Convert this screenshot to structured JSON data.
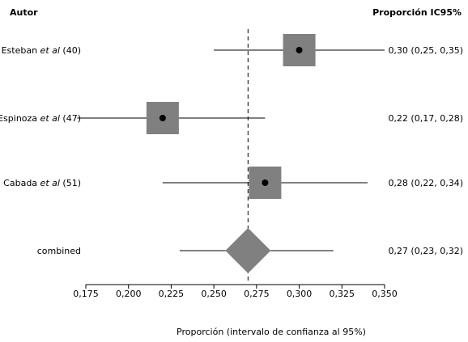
{
  "chart_data": {
    "type": "forest",
    "header_left": "Autor",
    "header_right": "Proporción IC95%",
    "xlabel": "Proporción (intervalo de confianza al 95%)",
    "xlim": [
      0.175,
      0.35
    ],
    "xticks": [
      "0,175",
      "0,200",
      "0,225",
      "0,250",
      "0,275",
      "0,300",
      "0,325",
      "0,350"
    ],
    "xtick_values": [
      0.175,
      0.2,
      0.225,
      0.25,
      0.275,
      0.3,
      0.325,
      0.35
    ],
    "reference_line": 0.27,
    "studies": [
      {
        "name": "Esteban",
        "suffix": "et al",
        "ref": "(40)",
        "estimate": 0.3,
        "lower": 0.25,
        "upper": 0.35,
        "ci_text": "0,30 (0,25, 0,35)",
        "weight": 0.33
      },
      {
        "name": "Espinoza",
        "suffix": "et al",
        "ref": "(47)",
        "estimate": 0.22,
        "lower": 0.17,
        "upper": 0.28,
        "ci_text": "0,22 (0,17, 0,28)",
        "weight": 0.33
      },
      {
        "name": "Cabada",
        "suffix": "et al",
        "ref": "(51)",
        "estimate": 0.28,
        "lower": 0.22,
        "upper": 0.34,
        "ci_text": "0,28 (0,22, 0,34)",
        "weight": 0.34
      }
    ],
    "combined": {
      "label": "combined",
      "estimate": 0.27,
      "lower": 0.23,
      "upper": 0.32,
      "ci_text": "0,27 (0,23, 0,32)"
    },
    "colors": {
      "box": "#808080",
      "diamond": "#808080",
      "line": "#000000"
    }
  }
}
